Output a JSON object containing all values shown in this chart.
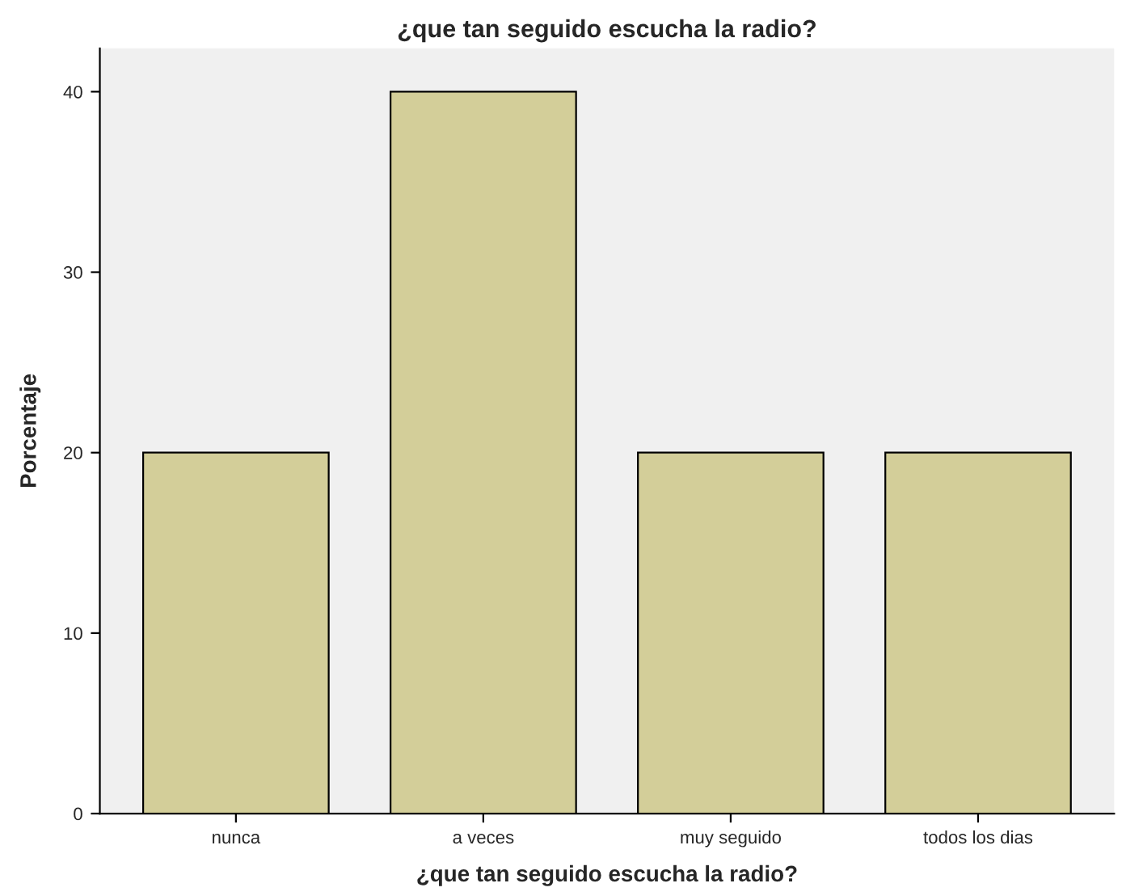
{
  "chart_data": {
    "type": "bar",
    "title": "¿que tan seguido escucha la radio?",
    "xlabel": "¿que tan seguido escucha la radio?",
    "ylabel": "Porcentaje",
    "categories": [
      "nunca",
      "a veces",
      "muy seguido",
      "todos los dias"
    ],
    "values": [
      20,
      40,
      20,
      20
    ],
    "color": "#d3ce99",
    "ylim": [
      0,
      42.4
    ],
    "yticks": [
      0,
      10,
      20,
      30,
      40
    ],
    "grid": false,
    "legend": false
  }
}
